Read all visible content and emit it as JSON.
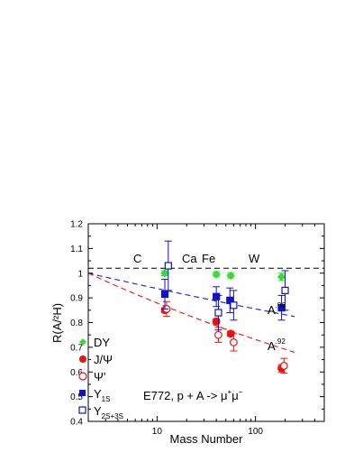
{
  "chart_data": {
    "type": "scatter",
    "xlabel": "Mass Number",
    "ylabel": "R(A/²H)",
    "x_scale": "log",
    "xlim": [
      2,
      500
    ],
    "ylim": [
      0.4,
      1.2
    ],
    "x_ticks": [
      {
        "value": 10,
        "label": "10"
      },
      {
        "value": 100,
        "label": "100"
      }
    ],
    "y_ticks": [
      "0.4",
      "0.5",
      "0.6",
      "0.7",
      "0.8",
      "0.9",
      "1",
      "1.1",
      "1.2"
    ],
    "grid": false,
    "legend_position": "bottom-left",
    "reference_line": {
      "y": 1.02,
      "style": "dashed",
      "color": "#000000"
    },
    "annotations": [
      {
        "text": "C",
        "x": 12,
        "y": 1.05
      },
      {
        "text": "Ca",
        "x": 40,
        "y": 1.05
      },
      {
        "text": "Fe",
        "x": 56,
        "y": 1.05
      },
      {
        "text": "W",
        "x": 184,
        "y": 1.05
      }
    ],
    "experiment": {
      "prefix": "E772, p + A -> ",
      "mu": "μ",
      "plus": "+",
      "minus": "−"
    },
    "series": [
      {
        "name": "DY",
        "marker": "diamond",
        "filled": true,
        "color": "#33dd33",
        "points": [
          {
            "x": 12,
            "y": 1.0,
            "err": 0.01
          },
          {
            "x": 40,
            "y": 0.995,
            "err": 0.01
          },
          {
            "x": 56,
            "y": 0.99,
            "err": 0.01
          },
          {
            "x": 184,
            "y": 0.985,
            "err": 0.015
          }
        ]
      },
      {
        "name": "J/Ψ",
        "marker": "circle",
        "filled": true,
        "color": "#ee1111",
        "points": [
          {
            "x": 12,
            "y": 0.85,
            "err": 0.01
          },
          {
            "x": 40,
            "y": 0.805,
            "err": 0.01
          },
          {
            "x": 56,
            "y": 0.755,
            "err": 0.01
          },
          {
            "x": 184,
            "y": 0.615,
            "err": 0.015
          }
        ]
      },
      {
        "name": "Ψ'",
        "marker": "circle",
        "filled": false,
        "color": "#ee1111",
        "points": [
          {
            "x": 12.5,
            "y": 0.855,
            "err": 0.03
          },
          {
            "x": 42,
            "y": 0.75,
            "err": 0.03
          },
          {
            "x": 60,
            "y": 0.72,
            "err": 0.035
          },
          {
            "x": 195,
            "y": 0.625,
            "err": 0.03
          }
        ]
      },
      {
        "name": "Υ",
        "sub": "1S",
        "marker": "square",
        "filled": true,
        "color": "#1111cc",
        "points": [
          {
            "x": 12,
            "y": 0.915,
            "err": 0.06
          },
          {
            "x": 40,
            "y": 0.905,
            "err": 0.04
          },
          {
            "x": 55,
            "y": 0.89,
            "err": 0.05
          },
          {
            "x": 184,
            "y": 0.86,
            "err": 0.05
          }
        ]
      },
      {
        "name": "Υ",
        "sub": "2S+3S",
        "marker": "square",
        "filled": false,
        "color": "#1111cc",
        "points": [
          {
            "x": 13,
            "y": 1.03,
            "err": 0.1
          },
          {
            "x": 42,
            "y": 0.84,
            "err": 0.07
          },
          {
            "x": 60,
            "y": 0.87,
            "err": 0.06
          },
          {
            "x": 200,
            "y": 0.93,
            "err": 0.08
          }
        ]
      }
    ],
    "fits": [
      {
        "label_base": "A",
        "label_exp": "-.96",
        "label_display": ".96",
        "alpha": 0.96,
        "color": "#2233cc",
        "x_range": [
          2,
          250
        ],
        "label_at": {
          "x": 230,
          "y": 0.865
        }
      },
      {
        "label_base": "A",
        "label_exp": "-.92",
        "label_display": ".92",
        "alpha": 0.92,
        "color": "#ee2222",
        "x_range": [
          2,
          250
        ],
        "label_at": {
          "x": 230,
          "y": 0.69
        }
      }
    ]
  }
}
